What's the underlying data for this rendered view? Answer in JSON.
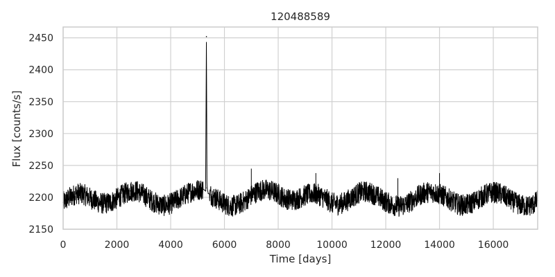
{
  "chart_data": {
    "type": "line",
    "title": "120488589",
    "xlabel": "Time [days]",
    "ylabel": "Flux [counts/s]",
    "xlim": [
      0,
      17650
    ],
    "ylim": [
      2150,
      2467
    ],
    "xticks": [
      0,
      2000,
      4000,
      6000,
      8000,
      10000,
      12000,
      14000,
      16000
    ],
    "yticks": [
      2150,
      2200,
      2250,
      2300,
      2350,
      2400,
      2450
    ],
    "grid": true,
    "line_color": "#000000",
    "series": [
      {
        "x": [
          0,
          250,
          500,
          750,
          1000,
          1250,
          1500,
          1750,
          2000,
          2250,
          2500,
          2750,
          3000,
          3250,
          3500,
          3750,
          4000,
          4250,
          4500,
          4750,
          5000,
          5200,
          5300,
          5330,
          5350,
          5400,
          5500,
          5750,
          6000,
          6250,
          6500,
          6750,
          7000,
          7250,
          7500,
          7750,
          8000,
          8250,
          8500,
          8750,
          9000,
          9250,
          9500,
          9750,
          10000,
          10250,
          10500,
          10750,
          11000,
          11250,
          11500,
          11750,
          12000,
          12250,
          12500,
          12750,
          13000,
          13250,
          13500,
          13750,
          14000,
          14250,
          14500,
          14750,
          15000,
          15250,
          15500,
          15750,
          16000,
          16250,
          16500,
          16750,
          17000,
          17250,
          17500,
          17650
        ],
        "y": [
          2192,
          2200,
          2206,
          2205,
          2199,
          2193,
          2190,
          2192,
          2198,
          2205,
          2210,
          2210,
          2204,
          2196,
          2190,
          2187,
          2190,
          2196,
          2203,
          2209,
          2212,
          2213,
          2210,
          2452,
          2215,
          2206,
          2204,
          2197,
          2190,
          2186,
          2188,
          2194,
          2203,
          2210,
          2212,
          2210,
          2205,
          2198,
          2196,
          2198,
          2203,
          2206,
          2204,
          2198,
          2191,
          2189,
          2193,
          2200,
          2207,
          2209,
          2206,
          2200,
          2193,
          2188,
          2186,
          2189,
          2196,
          2203,
          2208,
          2208,
          2205,
          2200,
          2193,
          2188,
          2188,
          2192,
          2199,
          2205,
          2208,
          2206,
          2200,
          2193,
          2188,
          2186,
          2189,
          2195
        ]
      }
    ]
  }
}
